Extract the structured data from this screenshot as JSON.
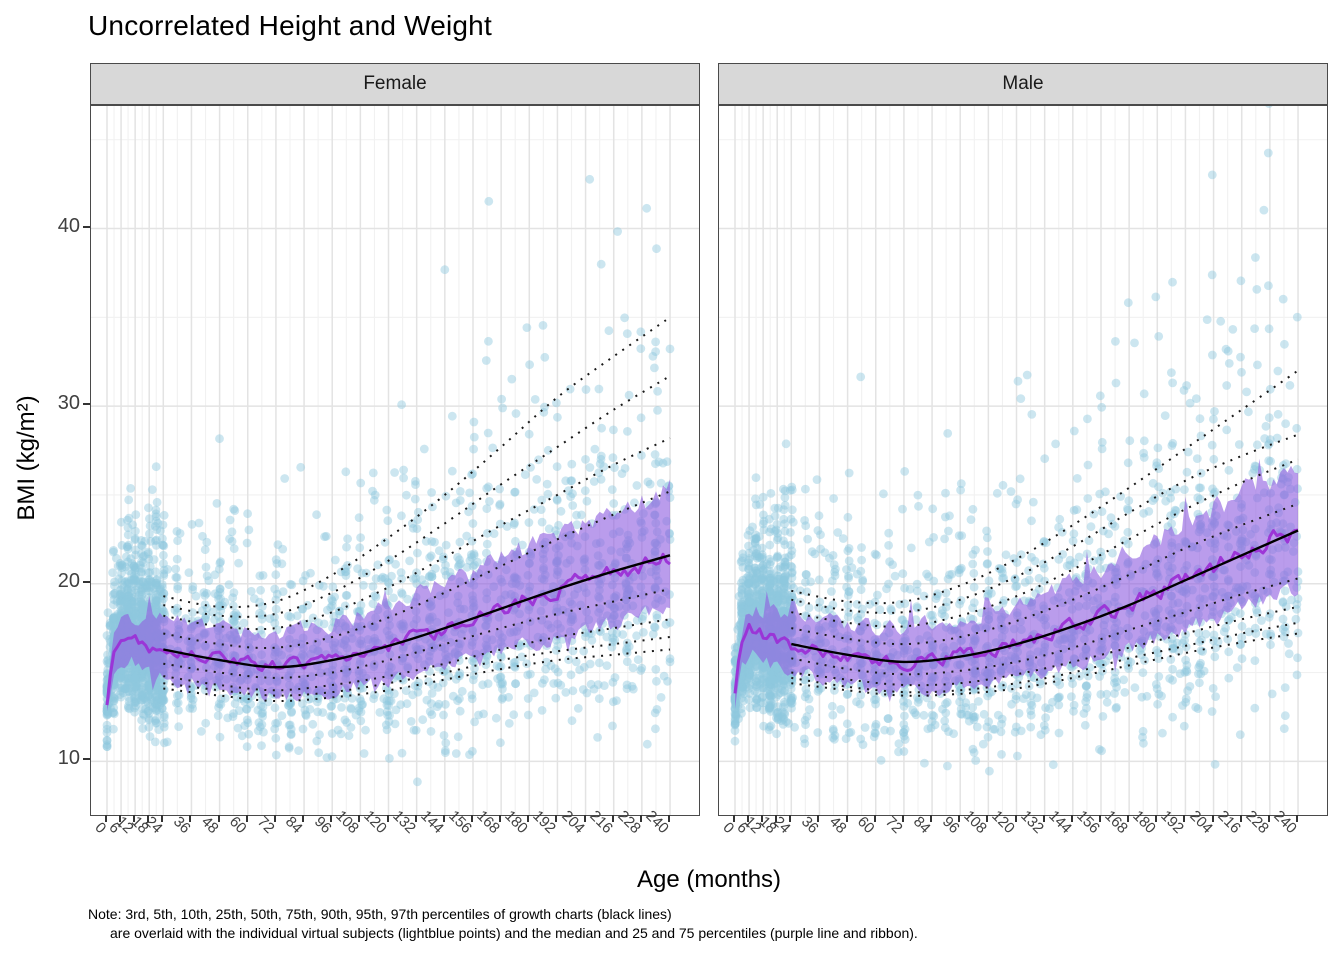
{
  "title": "Uncorrelated Height and Weight",
  "facets": [
    {
      "label": "Female"
    },
    {
      "label": "Male"
    }
  ],
  "x_axis": {
    "label": "Age (months)",
    "ticks": [
      0,
      6,
      12,
      18,
      24,
      36,
      48,
      60,
      72,
      84,
      96,
      108,
      120,
      132,
      144,
      156,
      168,
      180,
      192,
      204,
      216,
      228,
      240
    ]
  },
  "y_axis": {
    "label": "BMI (kg/m²)",
    "ticks": [
      10,
      20,
      30,
      40
    ],
    "minor_ticks": [
      15,
      25,
      35,
      45
    ]
  },
  "note": {
    "line1": "Note: 3rd, 5th, 10th, 25th, 50th, 75th, 90th, 95th, 97th percentiles of growth charts (black lines)",
    "line2": "are overlaid with the individual virtual subjects (lightblue points) and the median and 25 and 75 percentiles (purple line and ribbon)."
  },
  "colors": {
    "points": "#8FC8DE",
    "ribbon": "#8F5FE0",
    "median_line": "#9B30D6",
    "growth_lines": "#1A1A1A",
    "p50_line": "#000000",
    "strip_bg": "#D8D8D8",
    "grid_major": "#E3E3E3",
    "grid_minor": "#F1F1F1",
    "axis_text": "#404040"
  },
  "chart_data": {
    "type": "scatter",
    "title": "Uncorrelated Height and Weight",
    "xlabel": "Age (months)",
    "ylabel": "BMI (kg/m²)",
    "x_range": [
      0,
      240
    ],
    "y_range": [
      6.9,
      46.9
    ],
    "grid": true,
    "percentile_labels": [
      "3rd",
      "5th",
      "10th",
      "25th",
      "50th",
      "75th",
      "90th",
      "95th",
      "97th"
    ],
    "percentile_ages": [
      24,
      48,
      72,
      96,
      120,
      144,
      168,
      192,
      216,
      240
    ],
    "scatter_style": {
      "n_per_facet": 2600,
      "color": "lightblue",
      "alpha": 0.45,
      "radius": 4.4
    },
    "facets": [
      {
        "name": "Female",
        "infant_median": [
          [
            0,
            13.3
          ],
          [
            1,
            14.6
          ],
          [
            2,
            15.4
          ],
          [
            3,
            16.0
          ],
          [
            4,
            16.3
          ],
          [
            6,
            16.8
          ],
          [
            9,
            17.0
          ],
          [
            12,
            16.8
          ],
          [
            15,
            16.6
          ],
          [
            18,
            16.5
          ],
          [
            21,
            16.4
          ],
          [
            24,
            16.3
          ]
        ],
        "percentiles": {
          "p3": [
            14.1,
            13.7,
            13.4,
            13.6,
            14.0,
            14.6,
            15.2,
            15.7,
            16.0,
            16.3
          ],
          "p5": [
            14.4,
            14.0,
            13.7,
            13.9,
            14.4,
            15.0,
            15.7,
            16.2,
            16.6,
            17.0
          ],
          "p10": [
            14.8,
            14.3,
            14.0,
            14.3,
            14.8,
            15.5,
            16.3,
            17.0,
            17.5,
            18.0
          ],
          "p25": [
            15.5,
            15.0,
            14.7,
            15.0,
            15.7,
            16.6,
            17.5,
            18.3,
            19.0,
            19.7
          ],
          "p50": [
            16.3,
            15.7,
            15.3,
            15.7,
            16.5,
            17.5,
            18.6,
            19.7,
            20.7,
            21.6
          ],
          "p75": [
            17.2,
            16.6,
            16.4,
            17.0,
            18.1,
            19.5,
            21.0,
            22.5,
            23.9,
            25.2
          ],
          "p90": [
            18.2,
            17.6,
            17.5,
            18.4,
            19.8,
            21.5,
            23.3,
            25.0,
            26.7,
            28.2
          ],
          "p95": [
            18.8,
            18.2,
            18.3,
            19.5,
            21.3,
            23.4,
            25.6,
            27.7,
            29.8,
            31.7
          ],
          "p97": [
            19.3,
            18.7,
            19.0,
            20.5,
            22.6,
            25.0,
            27.7,
            30.5,
            32.8,
            35.0
          ]
        }
      },
      {
        "name": "Male",
        "infant_median": [
          [
            0,
            13.6
          ],
          [
            1,
            15.0
          ],
          [
            2,
            15.8
          ],
          [
            3,
            16.4
          ],
          [
            4,
            16.7
          ],
          [
            6,
            17.2
          ],
          [
            9,
            17.3
          ],
          [
            12,
            17.1
          ],
          [
            15,
            16.9
          ],
          [
            18,
            16.8
          ],
          [
            21,
            16.7
          ],
          [
            24,
            16.6
          ]
        ],
        "percentiles": {
          "p3": [
            14.4,
            14.0,
            13.7,
            13.8,
            14.1,
            14.7,
            15.4,
            16.1,
            16.7,
            17.2
          ],
          "p5": [
            14.7,
            14.2,
            13.9,
            14.0,
            14.4,
            15.0,
            15.8,
            16.5,
            17.2,
            17.8
          ],
          "p10": [
            15.0,
            14.6,
            14.3,
            14.4,
            14.9,
            15.6,
            16.4,
            17.2,
            18.0,
            18.7
          ],
          "p25": [
            15.8,
            15.2,
            14.9,
            15.1,
            15.6,
            16.4,
            17.4,
            18.4,
            19.4,
            20.3
          ],
          "p50": [
            16.6,
            16.0,
            15.6,
            15.9,
            16.6,
            17.6,
            18.8,
            20.2,
            21.6,
            23.0
          ],
          "p75": [
            17.5,
            16.9,
            16.6,
            17.0,
            17.9,
            19.1,
            20.5,
            22.0,
            23.3,
            24.5
          ],
          "p90": [
            18.4,
            17.8,
            17.6,
            18.2,
            19.3,
            20.8,
            22.5,
            24.2,
            25.7,
            27.0
          ],
          "p95": [
            19.1,
            18.5,
            18.4,
            19.1,
            20.4,
            22.1,
            24.0,
            25.8,
            27.2,
            28.4
          ],
          "p97": [
            19.6,
            19.0,
            19.0,
            19.9,
            21.4,
            23.3,
            25.4,
            27.6,
            29.8,
            32.0
          ]
        }
      }
    ]
  }
}
